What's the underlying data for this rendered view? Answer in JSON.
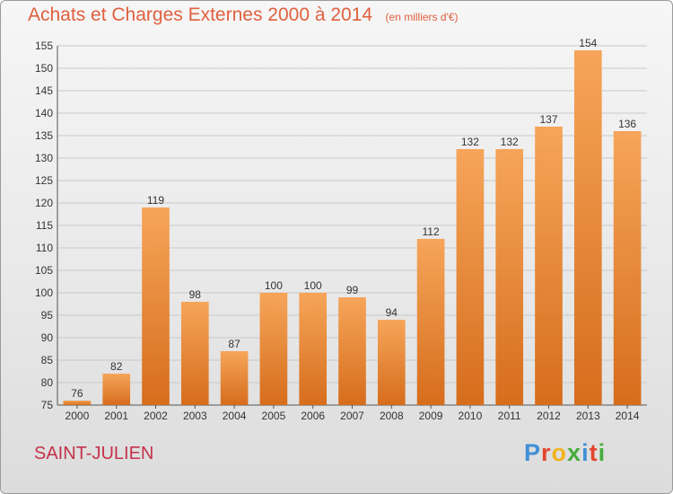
{
  "title": "Achats et Charges Externes 2000 à 2014",
  "unit_note": "(en milliers d'€)",
  "commune": "SAINT-JULIEN",
  "brand": "Proxiti",
  "colors": {
    "title": "#e0603f",
    "commune": "#c4334a",
    "bar_top": "#f6a55a",
    "bar_bottom": "#d66d1c",
    "axis": "#555555",
    "grid": "#c9c9c9",
    "logo": [
      "#3f8fd6",
      "#e2462f",
      "#f2b21c",
      "#45ad3c",
      "#3f8fd6",
      "#e2462f",
      "#45ad3c"
    ]
  },
  "chart_data": {
    "type": "bar",
    "title": "Achats et Charges Externes 2000 à 2014",
    "categories": [
      "2000",
      "2001",
      "2002",
      "2003",
      "2004",
      "2005",
      "2006",
      "2007",
      "2008",
      "2009",
      "2010",
      "2011",
      "2012",
      "2013",
      "2014"
    ],
    "values": [
      76,
      82,
      119,
      98,
      87,
      100,
      100,
      99,
      94,
      112,
      132,
      132,
      137,
      154,
      136
    ],
    "ylim": [
      75,
      155
    ],
    "yticks": [
      75,
      80,
      85,
      90,
      95,
      100,
      105,
      110,
      115,
      120,
      125,
      130,
      135,
      140,
      145,
      150,
      155
    ],
    "grid": true,
    "data_labels": true
  }
}
